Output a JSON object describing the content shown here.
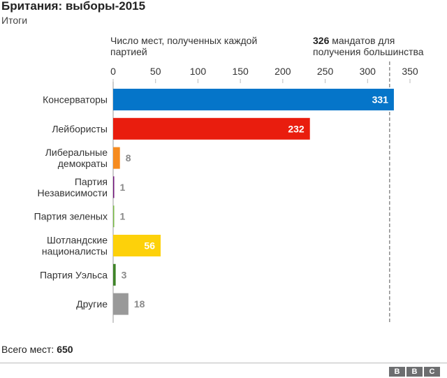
{
  "header": {
    "title": "Британия: выборы-2015",
    "subtitle": "Итоги"
  },
  "chart_data": {
    "type": "bar",
    "orientation": "horizontal",
    "xlabel": "Число мест, полученных каждой партией",
    "xlim": [
      0,
      350
    ],
    "xticks": [
      0,
      50,
      100,
      150,
      200,
      250,
      300,
      350
    ],
    "categories": [
      [
        "Консерваторы"
      ],
      [
        "Лейбористы"
      ],
      [
        "Либеральные",
        "демократы"
      ],
      [
        "Партия",
        "Независимости"
      ],
      [
        "Партия зеленых"
      ],
      [
        "Шотландские",
        "националисты"
      ],
      [
        "Партия Уэльса"
      ],
      [
        "Другие"
      ]
    ],
    "values": [
      331,
      232,
      8,
      1,
      1,
      56,
      3,
      18
    ],
    "colors": [
      "#0575c9",
      "#e91d0e",
      "#f68b1f",
      "#70147a",
      "#78b943",
      "#fdd10a",
      "#3f8428",
      "#999999"
    ],
    "reference_line": {
      "value": 326,
      "label_bold": "326",
      "label_rest": " мандатов для",
      "label_line2": "получения большинства"
    }
  },
  "footer": {
    "total_label": "Всего мест: ",
    "total_value": "650",
    "logo": [
      "B",
      "B",
      "C"
    ]
  }
}
